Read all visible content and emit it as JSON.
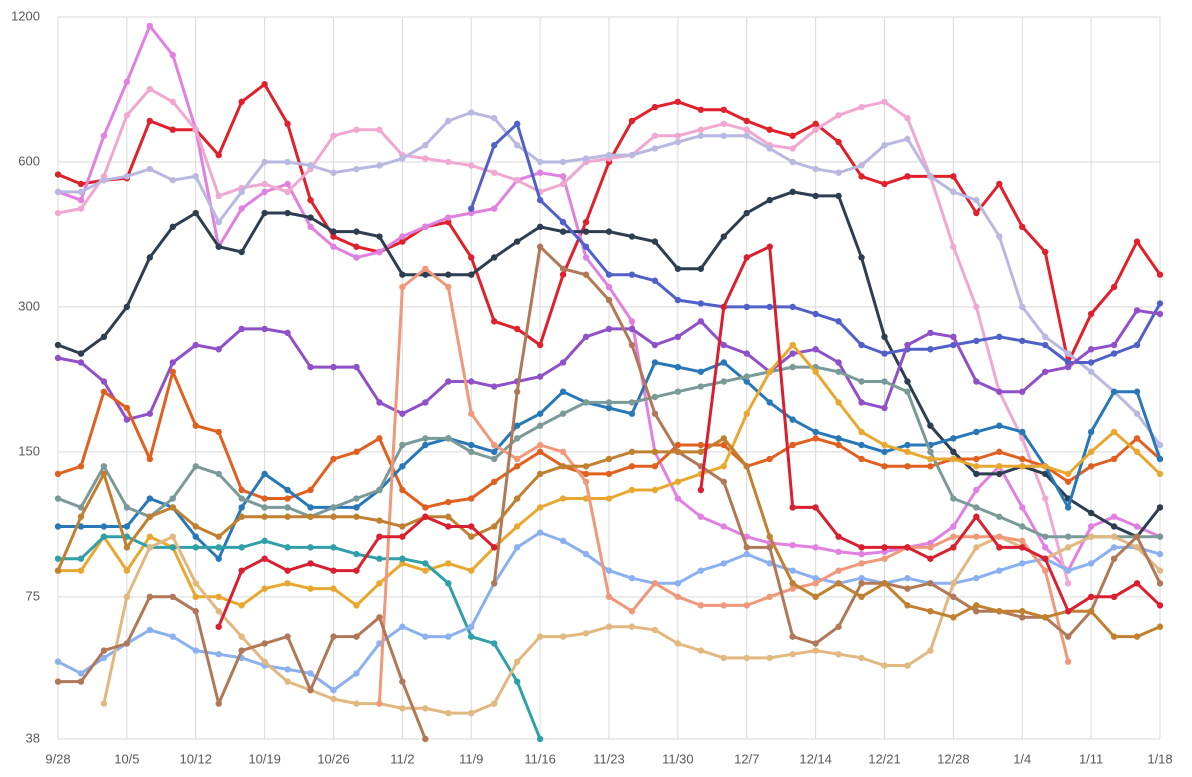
{
  "chart_data": {
    "type": "line",
    "log_scale": true,
    "grid": true,
    "categories": [
      "9/28",
      null,
      null,
      "10/5",
      null,
      null,
      "10/12",
      null,
      null,
      "10/19",
      null,
      null,
      "10/26",
      null,
      null,
      "11/2",
      null,
      null,
      "11/9",
      null,
      null,
      "11/16",
      null,
      null,
      "11/23",
      null,
      null,
      "11/30",
      null,
      null,
      "12/7",
      null,
      null,
      "12/14",
      null,
      null,
      "12/21",
      null,
      null,
      "12/28",
      null,
      null,
      "1/4",
      null,
      null,
      "1/11",
      null,
      null,
      "1/18"
    ],
    "ylim": [
      38,
      1200
    ],
    "yticks": [
      38,
      75,
      150,
      300,
      600,
      1200
    ],
    "series": [
      {
        "color": "#e0202a",
        "values": [
          565,
          540,
          550,
          555,
          730,
          700,
          700,
          620,
          800,
          870,
          720,
          500,
          420,
          400,
          390,
          410,
          440,
          450,
          380,
          280,
          270,
          250,
          350,
          450,
          600,
          730,
          780,
          800,
          770,
          770,
          730,
          700,
          680,
          720,
          660,
          560,
          540,
          560,
          560,
          560,
          470,
          540,
          440,
          390,
          230,
          290,
          330,
          410,
          350
        ]
      },
      {
        "color": "#e080e0",
        "values": [
          520,
          500,
          680,
          880,
          1150,
          1000,
          700,
          400,
          480,
          520,
          540,
          440,
          400,
          380,
          390,
          420,
          440,
          460,
          470,
          480,
          550,
          570,
          560,
          380,
          330,
          280,
          150,
          120,
          110,
          105,
          100,
          97,
          96,
          95,
          93,
          92,
          93,
          95,
          97,
          105,
          125,
          140,
          115,
          95,
          85,
          105,
          110,
          105,
          100
        ]
      },
      {
        "color": "#f0a8d0",
        "values": [
          470,
          480,
          560,
          750,
          850,
          800,
          700,
          510,
          530,
          540,
          520,
          580,
          680,
          700,
          700,
          620,
          610,
          600,
          590,
          570,
          550,
          520,
          540,
          600,
          610,
          620,
          680,
          680,
          700,
          720,
          700,
          650,
          640,
          700,
          750,
          780,
          800,
          740,
          560,
          400,
          300,
          200,
          160,
          120,
          80,
          null,
          null,
          null,
          null
        ]
      },
      {
        "color": "#b8b8e0",
        "values": [
          520,
          520,
          550,
          560,
          580,
          550,
          560,
          450,
          520,
          600,
          600,
          590,
          570,
          580,
          590,
          610,
          650,
          730,
          760,
          740,
          650,
          600,
          600,
          610,
          620,
          620,
          640,
          660,
          680,
          680,
          680,
          640,
          600,
          580,
          570,
          590,
          650,
          670,
          560,
          520,
          500,
          420,
          300,
          260,
          240,
          220,
          200,
          180,
          155
        ]
      },
      {
        "color": "#2c3e50",
        "values": [
          250,
          240,
          260,
          300,
          380,
          440,
          470,
          400,
          390,
          470,
          470,
          460,
          430,
          430,
          420,
          350,
          350,
          350,
          350,
          380,
          410,
          440,
          430,
          430,
          430,
          420,
          410,
          360,
          360,
          420,
          470,
          500,
          520,
          510,
          510,
          380,
          260,
          210,
          170,
          150,
          135,
          135,
          140,
          135,
          120,
          112,
          105,
          100,
          115
        ]
      },
      {
        "color": "#5060c8",
        "values": [
          null,
          null,
          null,
          null,
          null,
          null,
          null,
          null,
          null,
          null,
          null,
          null,
          null,
          null,
          null,
          null,
          null,
          null,
          480,
          650,
          720,
          500,
          450,
          400,
          350,
          350,
          340,
          310,
          305,
          300,
          300,
          300,
          300,
          290,
          280,
          250,
          240,
          245,
          245,
          250,
          255,
          260,
          255,
          250,
          230,
          230,
          240,
          250,
          305
        ]
      },
      {
        "color": "#9050c8",
        "values": [
          235,
          230,
          210,
          175,
          180,
          230,
          250,
          245,
          270,
          270,
          265,
          225,
          225,
          225,
          190,
          180,
          190,
          210,
          210,
          205,
          210,
          215,
          230,
          260,
          270,
          270,
          250,
          260,
          280,
          250,
          240,
          220,
          240,
          245,
          230,
          190,
          185,
          250,
          265,
          260,
          210,
          200,
          200,
          220,
          225,
          245,
          250,
          295,
          290
        ]
      },
      {
        "color": "#e06020",
        "values": [
          135,
          140,
          200,
          185,
          145,
          220,
          170,
          165,
          125,
          120,
          120,
          125,
          145,
          150,
          160,
          125,
          115,
          118,
          120,
          130,
          140,
          150,
          140,
          135,
          135,
          140,
          140,
          155,
          155,
          155,
          140,
          145,
          155,
          160,
          155,
          145,
          140,
          140,
          140,
          145,
          145,
          150,
          145,
          140,
          130,
          140,
          145,
          160,
          145
        ]
      },
      {
        "color": "#2878b8",
        "values": [
          105,
          105,
          105,
          105,
          120,
          115,
          100,
          90,
          115,
          135,
          125,
          115,
          115,
          115,
          125,
          140,
          155,
          160,
          155,
          150,
          170,
          180,
          200,
          190,
          185,
          180,
          230,
          225,
          220,
          230,
          210,
          190,
          175,
          165,
          160,
          155,
          150,
          155,
          155,
          160,
          165,
          170,
          165,
          140,
          115,
          165,
          200,
          200,
          145
        ]
      },
      {
        "color": "#7a9a98",
        "values": [
          120,
          115,
          140,
          115,
          110,
          120,
          140,
          135,
          120,
          115,
          115,
          110,
          115,
          120,
          125,
          155,
          160,
          160,
          150,
          145,
          160,
          170,
          180,
          190,
          190,
          190,
          195,
          200,
          205,
          210,
          215,
          220,
          225,
          225,
          220,
          210,
          210,
          200,
          150,
          120,
          115,
          110,
          105,
          100,
          100,
          100,
          100,
          100,
          100
        ]
      },
      {
        "color": "#e8a830",
        "values": [
          85,
          85,
          100,
          85,
          100,
          95,
          75,
          75,
          72,
          78,
          80,
          78,
          78,
          72,
          80,
          88,
          85,
          88,
          85,
          95,
          105,
          115,
          120,
          120,
          120,
          125,
          125,
          130,
          135,
          140,
          180,
          220,
          250,
          220,
          190,
          165,
          155,
          150,
          145,
          145,
          140,
          140,
          140,
          140,
          135,
          150,
          165,
          150,
          135
        ]
      },
      {
        "color": "#30a0a8",
        "values": [
          90,
          90,
          100,
          100,
          95,
          95,
          95,
          95,
          95,
          98,
          95,
          95,
          95,
          92,
          90,
          90,
          88,
          80,
          62,
          60,
          50,
          38,
          null,
          null,
          null,
          null,
          null,
          null,
          null,
          null,
          null,
          null,
          null,
          null,
          null,
          null,
          null,
          null,
          null,
          null,
          null,
          null,
          null,
          null,
          null,
          null,
          null,
          null,
          null
        ]
      },
      {
        "color": "#8ab0f0",
        "values": [
          55,
          52,
          56,
          60,
          64,
          62,
          58,
          57,
          56,
          54,
          53,
          52,
          48,
          52,
          60,
          65,
          62,
          62,
          65,
          80,
          95,
          102,
          98,
          92,
          85,
          82,
          80,
          80,
          85,
          88,
          92,
          88,
          85,
          82,
          80,
          82,
          80,
          82,
          80,
          80,
          82,
          85,
          88,
          90,
          85,
          88,
          95,
          95,
          92
        ]
      },
      {
        "color": "#e0b880",
        "values": [
          null,
          null,
          45,
          75,
          95,
          100,
          80,
          70,
          62,
          55,
          50,
          48,
          46,
          45,
          45,
          44,
          44,
          43,
          43,
          45,
          55,
          62,
          62,
          63,
          65,
          65,
          64,
          60,
          58,
          56,
          56,
          56,
          57,
          58,
          57,
          56,
          54,
          54,
          58,
          80,
          95,
          100,
          95,
          90,
          95,
          100,
          100,
          95,
          85
        ]
      },
      {
        "color": "#f0987a",
        "values": [
          null,
          null,
          null,
          null,
          null,
          null,
          null,
          null,
          null,
          null,
          null,
          null,
          null,
          null,
          45,
          330,
          360,
          330,
          180,
          155,
          145,
          155,
          150,
          130,
          75,
          70,
          80,
          75,
          72,
          72,
          72,
          75,
          78,
          80,
          85,
          88,
          90,
          95,
          95,
          100,
          100,
          100,
          98,
          85,
          55,
          null,
          null,
          null,
          null
        ]
      },
      {
        "color": "#b07858",
        "values": [
          50,
          50,
          58,
          60,
          75,
          75,
          70,
          45,
          58,
          60,
          62,
          48,
          62,
          62,
          68,
          50,
          38,
          null,
          null,
          80,
          200,
          400,
          360,
          350,
          310,
          250,
          180,
          150,
          140,
          130,
          95,
          95,
          62,
          60,
          65,
          80,
          80,
          78,
          80,
          75,
          70,
          70,
          68,
          68,
          62,
          70,
          90,
          100,
          80
        ]
      },
      {
        "color": "#c08030",
        "values": [
          85,
          110,
          135,
          95,
          110,
          115,
          105,
          100,
          110,
          110,
          110,
          110,
          110,
          110,
          108,
          105,
          110,
          110,
          100,
          105,
          120,
          135,
          140,
          140,
          145,
          150,
          150,
          150,
          150,
          160,
          140,
          100,
          80,
          75,
          80,
          75,
          80,
          72,
          70,
          68,
          72,
          70,
          70,
          68,
          70,
          70,
          62,
          62,
          65
        ]
      },
      {
        "color": "#d82030",
        "values": [
          null,
          null,
          null,
          null,
          null,
          null,
          null,
          65,
          85,
          90,
          85,
          88,
          85,
          85,
          100,
          100,
          110,
          105,
          105,
          95,
          null,
          null,
          null,
          null,
          null,
          null,
          null,
          null,
          125,
          300,
          380,
          400,
          115,
          115,
          100,
          95,
          95,
          95,
          90,
          95,
          110,
          95,
          95,
          90,
          70,
          75,
          75,
          80,
          72
        ]
      }
    ]
  }
}
